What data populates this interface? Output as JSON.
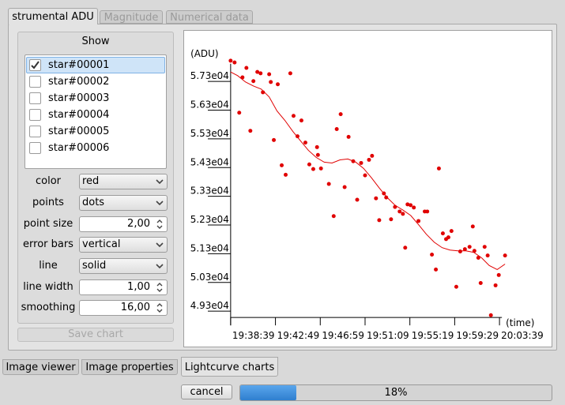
{
  "tabs": [
    {
      "label": "strumental ADU",
      "active": true,
      "enabled": true
    },
    {
      "label": "Magnitude",
      "active": false,
      "enabled": false
    },
    {
      "label": "Numerical data",
      "active": false,
      "enabled": false
    }
  ],
  "panel": {
    "show_title": "Show",
    "stars": [
      {
        "label": "star#00001",
        "checked": true
      },
      {
        "label": "star#00002",
        "checked": false
      },
      {
        "label": "star#00003",
        "checked": false
      },
      {
        "label": "star#00004",
        "checked": false
      },
      {
        "label": "star#00005",
        "checked": false
      },
      {
        "label": "star#00006",
        "checked": false
      }
    ],
    "fields": [
      {
        "label": "color",
        "value": "red",
        "kind": "combo"
      },
      {
        "label": "points",
        "value": "dots",
        "kind": "combo"
      },
      {
        "label": "point size",
        "value": "2,00",
        "kind": "spin"
      },
      {
        "label": "error bars",
        "value": "vertical",
        "kind": "combo"
      },
      {
        "label": "line",
        "value": "solid",
        "kind": "combo"
      },
      {
        "label": "line width",
        "value": "1,00",
        "kind": "spin"
      },
      {
        "label": "smoothing",
        "value": "16,00",
        "kind": "spin"
      }
    ],
    "save_button": {
      "label": "Save chart",
      "enabled": false
    }
  },
  "chart_data": {
    "type": "scatter",
    "ylabel": "(ADU)",
    "xlabel": "(time)",
    "xlim": [
      70719,
      72250
    ],
    "ylim": [
      49080,
      58050
    ],
    "xticks": [
      {
        "value": 70719,
        "label": "19:38:39"
      },
      {
        "value": 70969,
        "label": "19:42:49"
      },
      {
        "value": 71219,
        "label": "19:46:59"
      },
      {
        "value": 71469,
        "label": "19:51:09"
      },
      {
        "value": 71719,
        "label": "19:55:19"
      },
      {
        "value": 71969,
        "label": "19:59:29"
      },
      {
        "value": 72219,
        "label": "20:03:39"
      }
    ],
    "yticks": [
      {
        "value": 49300,
        "label": "4.93e04"
      },
      {
        "value": 50300,
        "label": "5.03e04"
      },
      {
        "value": 51300,
        "label": "5.13e04"
      },
      {
        "value": 52300,
        "label": "5.23e04"
      },
      {
        "value": 53300,
        "label": "5.33e04"
      },
      {
        "value": 54300,
        "label": "5.43e04"
      },
      {
        "value": 55300,
        "label": "5.53e04"
      },
      {
        "value": 56300,
        "label": "5.63e04"
      },
      {
        "value": 57300,
        "label": "5.73e04"
      }
    ],
    "series": [
      {
        "type": "scatter",
        "color": "#e00000",
        "x": [
          70719,
          70741,
          70767,
          70785,
          70807,
          70829,
          70846,
          70868,
          70886,
          70899,
          70934,
          70943,
          70960,
          70982,
          71004,
          71026,
          71052,
          71070,
          71092,
          71114,
          71136,
          71158,
          71180,
          71201,
          71206,
          71223,
          71267,
          71294,
          71311,
          71333,
          71355,
          71377,
          71403,
          71425,
          71447,
          71469,
          71491,
          71508,
          71530,
          71548,
          71574,
          71587,
          71614,
          71636,
          71662,
          71680,
          71693,
          71706,
          71723,
          71741,
          71767,
          71802,
          71816,
          71842,
          71864,
          71881,
          71903,
          71921,
          71934,
          71951,
          71978,
          72000,
          72026,
          72052,
          72070,
          72079,
          72101,
          72114,
          72136,
          72153,
          72171,
          72197,
          72215,
          72250
        ],
        "values": [
          58020,
          57960,
          56210,
          57440,
          57770,
          55580,
          57310,
          57630,
          57580,
          56920,
          57550,
          57280,
          55260,
          57200,
          54380,
          54050,
          57580,
          56100,
          55390,
          55940,
          55170,
          54410,
          54250,
          55010,
          54740,
          54270,
          53730,
          52610,
          55640,
          56160,
          53620,
          55370,
          54520,
          53180,
          54460,
          54030,
          54570,
          54710,
          53230,
          52470,
          53400,
          53260,
          52500,
          52930,
          52770,
          52690,
          51510,
          53020,
          52990,
          52910,
          52440,
          52770,
          52770,
          51270,
          50750,
          54270,
          52010,
          51810,
          51870,
          52090,
          50150,
          51380,
          51460,
          51540,
          52250,
          51400,
          51160,
          50280,
          51540,
          51240,
          49160,
          50200,
          50560,
          51240
        ]
      },
      {
        "type": "line",
        "color": "#e00000",
        "x": [
          70719,
          70758,
          70802,
          70846,
          70890,
          70934,
          70978,
          71022,
          71066,
          71109,
          71153,
          71197,
          71241,
          71285,
          71329,
          71373,
          71417,
          71461,
          71505,
          71548,
          71592,
          71636,
          71680,
          71724,
          71768,
          71811,
          71855,
          71899,
          71943,
          71987,
          72031,
          72075,
          72119,
          72162,
          72206,
          72250
        ],
        "values": [
          57630,
          57500,
          57280,
          57140,
          57030,
          56760,
          56270,
          55940,
          55560,
          55230,
          54900,
          54650,
          54490,
          54460,
          54570,
          54600,
          54490,
          54270,
          53940,
          53590,
          53260,
          52990,
          52820,
          52630,
          52310,
          51980,
          51700,
          51510,
          51430,
          51400,
          51400,
          51350,
          51160,
          50890,
          50750,
          50940
        ]
      }
    ]
  },
  "bottom_tabs": [
    {
      "label": "Image viewer",
      "active": false
    },
    {
      "label": "Image properties",
      "active": false
    },
    {
      "label": "Lightcurve charts",
      "active": true
    }
  ],
  "cancel_button": "cancel",
  "progress": {
    "value": 18,
    "label": "18%"
  }
}
